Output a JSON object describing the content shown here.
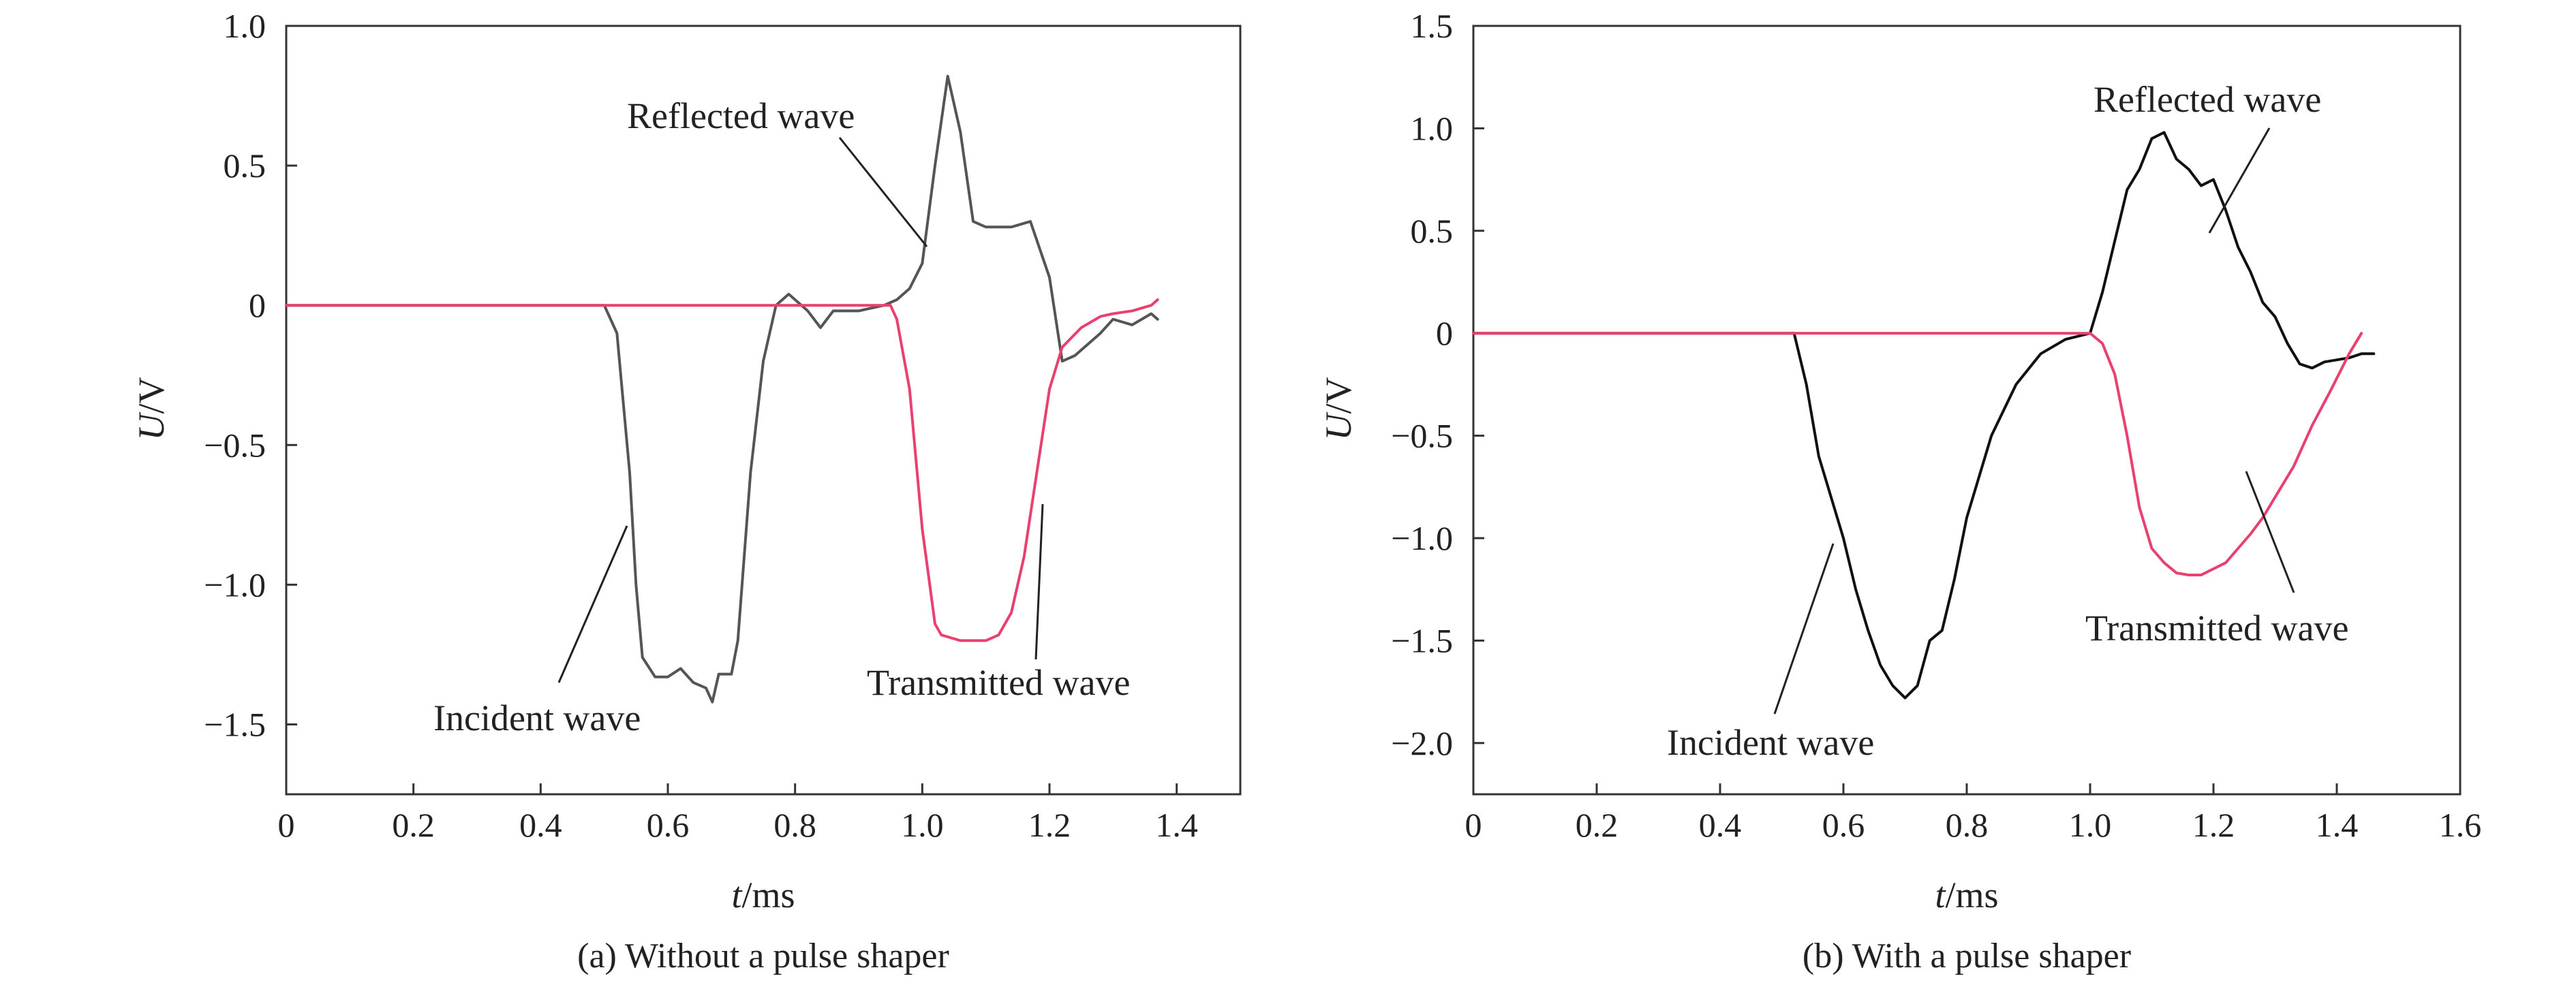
{
  "chart_data": [
    {
      "type": "line",
      "caption": "(a) Without a pulse shaper",
      "xlabel_italic": "t",
      "xlabel_unit": "/ms",
      "ylabel_italic": "U",
      "ylabel_unit": "/V",
      "xlim": [
        0,
        1.5
      ],
      "ylim": [
        -1.75,
        1.0
      ],
      "x_ticks": [
        0,
        0.2,
        0.4,
        0.6,
        0.8,
        1.0,
        1.2,
        1.4
      ],
      "x_tick_labels": [
        "0",
        "0.2",
        "0.4",
        "0.6",
        "0.8",
        "1.0",
        "1.2",
        "1.4"
      ],
      "y_ticks": [
        1.0,
        0.5,
        0,
        -0.5,
        -1.0,
        -1.5
      ],
      "y_tick_labels": [
        "1.0",
        "0.5",
        "0",
        "−0.5",
        "−1.0",
        "−1.5"
      ],
      "series": [
        {
          "color": "#555555",
          "x": [
            0,
            0.1,
            0.2,
            0.3,
            0.4,
            0.48,
            0.5,
            0.52,
            0.54,
            0.55,
            0.56,
            0.58,
            0.6,
            0.62,
            0.64,
            0.66,
            0.67,
            0.68,
            0.7,
            0.71,
            0.73,
            0.75,
            0.77,
            0.79,
            0.8,
            0.82,
            0.84,
            0.86,
            0.9,
            0.94,
            0.96,
            0.98,
            1.0,
            1.02,
            1.04,
            1.06,
            1.08,
            1.1,
            1.14,
            1.17,
            1.2,
            1.22,
            1.24,
            1.26,
            1.28,
            1.3,
            1.33,
            1.36,
            1.37
          ],
          "y": [
            0.0,
            0.0,
            0.0,
            0.0,
            0.0,
            0.0,
            0.0,
            -0.1,
            -0.6,
            -1.0,
            -1.26,
            -1.33,
            -1.33,
            -1.3,
            -1.35,
            -1.37,
            -1.42,
            -1.32,
            -1.32,
            -1.2,
            -0.6,
            -0.2,
            0.0,
            0.04,
            0.02,
            -0.02,
            -0.08,
            -0.02,
            -0.02,
            0.0,
            0.02,
            0.06,
            0.15,
            0.5,
            0.82,
            0.62,
            0.3,
            0.28,
            0.28,
            0.3,
            0.1,
            -0.2,
            -0.18,
            -0.14,
            -0.1,
            -0.05,
            -0.07,
            -0.03,
            -0.05
          ]
        },
        {
          "color": "#e8416f",
          "x": [
            0,
            0.2,
            0.4,
            0.6,
            0.8,
            0.9,
            0.95,
            0.96,
            0.98,
            1.0,
            1.02,
            1.03,
            1.06,
            1.1,
            1.12,
            1.14,
            1.16,
            1.18,
            1.2,
            1.22,
            1.25,
            1.28,
            1.3,
            1.33,
            1.36,
            1.37
          ],
          "y": [
            0.0,
            0.0,
            0.0,
            0.0,
            0.0,
            0.0,
            0.0,
            -0.05,
            -0.3,
            -0.8,
            -1.14,
            -1.18,
            -1.2,
            -1.2,
            -1.18,
            -1.1,
            -0.9,
            -0.6,
            -0.3,
            -0.15,
            -0.08,
            -0.04,
            -0.03,
            -0.02,
            0.0,
            0.02
          ]
        }
      ],
      "annotations": [
        "Reflected wave",
        "Incident wave",
        "Transmitted wave"
      ]
    },
    {
      "type": "line",
      "caption": "(b) With a pulse shaper",
      "xlabel_italic": "t",
      "xlabel_unit": "/ms",
      "ylabel_italic": "U",
      "ylabel_unit": "/V",
      "xlim": [
        0,
        1.6
      ],
      "ylim": [
        -2.25,
        1.5
      ],
      "x_ticks": [
        0,
        0.2,
        0.4,
        0.6,
        0.8,
        1.0,
        1.2,
        1.4,
        1.6
      ],
      "x_tick_labels": [
        "0",
        "0.2",
        "0.4",
        "0.6",
        "0.8",
        "1.0",
        "1.2",
        "1.4",
        "1.6"
      ],
      "y_ticks": [
        1.5,
        1.0,
        0.5,
        0,
        -0.5,
        -1.0,
        -1.5,
        -2.0
      ],
      "y_tick_labels": [
        "1.5",
        "1.0",
        "0.5",
        "0",
        "−0.5",
        "−1.0",
        "−1.5",
        "−2.0"
      ],
      "series": [
        {
          "color": "#111111",
          "x": [
            0,
            0.2,
            0.4,
            0.52,
            0.54,
            0.56,
            0.58,
            0.6,
            0.62,
            0.64,
            0.66,
            0.68,
            0.7,
            0.72,
            0.74,
            0.76,
            0.78,
            0.8,
            0.84,
            0.88,
            0.92,
            0.96,
            1.0,
            1.02,
            1.04,
            1.06,
            1.08,
            1.1,
            1.12,
            1.14,
            1.16,
            1.18,
            1.2,
            1.22,
            1.24,
            1.26,
            1.28,
            1.3,
            1.32,
            1.34,
            1.36,
            1.38,
            1.4,
            1.42,
            1.44,
            1.46
          ],
          "y": [
            0.0,
            0.0,
            0.0,
            0.0,
            -0.25,
            -0.6,
            -0.8,
            -1.0,
            -1.25,
            -1.45,
            -1.62,
            -1.72,
            -1.78,
            -1.72,
            -1.5,
            -1.45,
            -1.2,
            -0.9,
            -0.5,
            -0.25,
            -0.1,
            -0.03,
            0.0,
            0.2,
            0.45,
            0.7,
            0.8,
            0.95,
            0.98,
            0.85,
            0.8,
            0.72,
            0.75,
            0.6,
            0.42,
            0.3,
            0.15,
            0.08,
            -0.05,
            -0.15,
            -0.17,
            -0.14,
            -0.13,
            -0.12,
            -0.1,
            -0.1
          ]
        },
        {
          "color": "#e8416f",
          "x": [
            0,
            0.2,
            0.4,
            0.6,
            0.8,
            1.0,
            1.02,
            1.04,
            1.06,
            1.08,
            1.1,
            1.12,
            1.14,
            1.16,
            1.18,
            1.2,
            1.22,
            1.24,
            1.26,
            1.28,
            1.3,
            1.33,
            1.36,
            1.39,
            1.42,
            1.44
          ],
          "y": [
            0.0,
            0.0,
            0.0,
            0.0,
            0.0,
            0.0,
            -0.05,
            -0.2,
            -0.5,
            -0.85,
            -1.05,
            -1.12,
            -1.17,
            -1.18,
            -1.18,
            -1.15,
            -1.12,
            -1.05,
            -0.98,
            -0.9,
            -0.8,
            -0.65,
            -0.45,
            -0.28,
            -0.1,
            0.0
          ]
        }
      ],
      "annotations": [
        "Reflected wave",
        "Incident wave",
        "Transmitted wave"
      ]
    }
  ]
}
